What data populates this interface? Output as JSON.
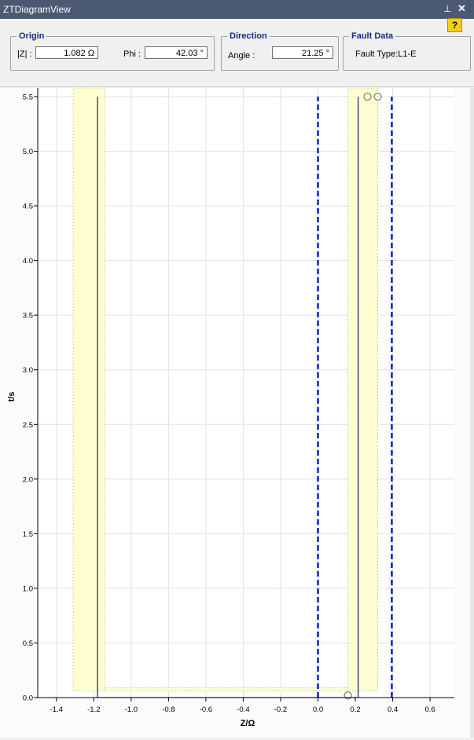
{
  "window": {
    "title": "ZTDiagramView",
    "pin_icon": "pin-icon",
    "close_icon": "close-icon",
    "help_label": "?"
  },
  "origin": {
    "legend": "Origin",
    "z_label": "|Z| :",
    "z_value": "1.082 Ω",
    "phi_label": "Phi :",
    "phi_value": "42.03 °"
  },
  "direction": {
    "legend": "Direction",
    "angle_label": "Angle :",
    "angle_value": "21.25 °"
  },
  "fault": {
    "legend": "Fault Data",
    "type_text": "Fault Type:L1-E"
  },
  "chart_data": {
    "type": "line",
    "xlabel": "Z/Ω",
    "ylabel": "t/s",
    "xlim": [
      -1.5,
      0.73
    ],
    "ylim": [
      0,
      5.5
    ],
    "x_ticks": [
      -1.4,
      -1.2,
      -1.0,
      -0.8,
      -0.6,
      -0.4,
      -0.2,
      0.0,
      0.2,
      0.4,
      0.6
    ],
    "x_tick_labels": [
      "-1.4",
      "-1.2",
      "-1.0",
      "-0.8",
      "-0.6",
      "-0.4",
      "-0.2",
      "0.0",
      "0.2",
      "0.4",
      "0.6"
    ],
    "y_ticks": [
      0,
      0.5,
      1.0,
      1.5,
      2.0,
      2.5,
      3.0,
      3.5,
      4.0,
      4.5,
      5.0,
      5.5
    ],
    "y_tick_labels": [
      "0.0",
      "0.5",
      "1.0",
      "1.5",
      "2.0",
      "2.5",
      "3.0",
      "3.5",
      "4.0",
      "4.5",
      "5.0",
      "5.5"
    ],
    "grid": true,
    "colors": {
      "band_fill": "#ffffd2",
      "band_edge": "#c8c08a",
      "characteristic": "#1a1a6a",
      "direction": "#1020c0",
      "marker": "#808080"
    },
    "tolerance_bands": [
      {
        "name": "left-band",
        "x_outer": -1.31,
        "x_inner": -1.14,
        "y_bottom_outer": 0.09,
        "y_bottom_inner": 0.06
      },
      {
        "name": "right-band",
        "x_outer": 0.32,
        "x_inner": 0.16,
        "y_bottom_outer": 0.09,
        "y_bottom_inner": 0.06
      }
    ],
    "series": [
      {
        "name": "characteristic",
        "style": "solid",
        "points": [
          [
            -1.18,
            5.5
          ],
          [
            -1.18,
            0.0
          ],
          [
            0.215,
            0.0
          ],
          [
            0.215,
            5.5
          ]
        ]
      },
      {
        "name": "direction-line-1",
        "style": "dashed",
        "points": [
          [
            0.0,
            0.0
          ],
          [
            0.0,
            5.5
          ]
        ]
      },
      {
        "name": "direction-line-2",
        "style": "dashed",
        "points": [
          [
            0.395,
            0.0
          ],
          [
            0.395,
            5.5
          ]
        ]
      }
    ],
    "markers": [
      {
        "name": "marker-bottom",
        "x": 0.16,
        "y": 0.02
      },
      {
        "name": "marker-top-1",
        "x": 0.265,
        "y": 5.5
      },
      {
        "name": "marker-top-2",
        "x": 0.32,
        "y": 5.5
      }
    ]
  }
}
